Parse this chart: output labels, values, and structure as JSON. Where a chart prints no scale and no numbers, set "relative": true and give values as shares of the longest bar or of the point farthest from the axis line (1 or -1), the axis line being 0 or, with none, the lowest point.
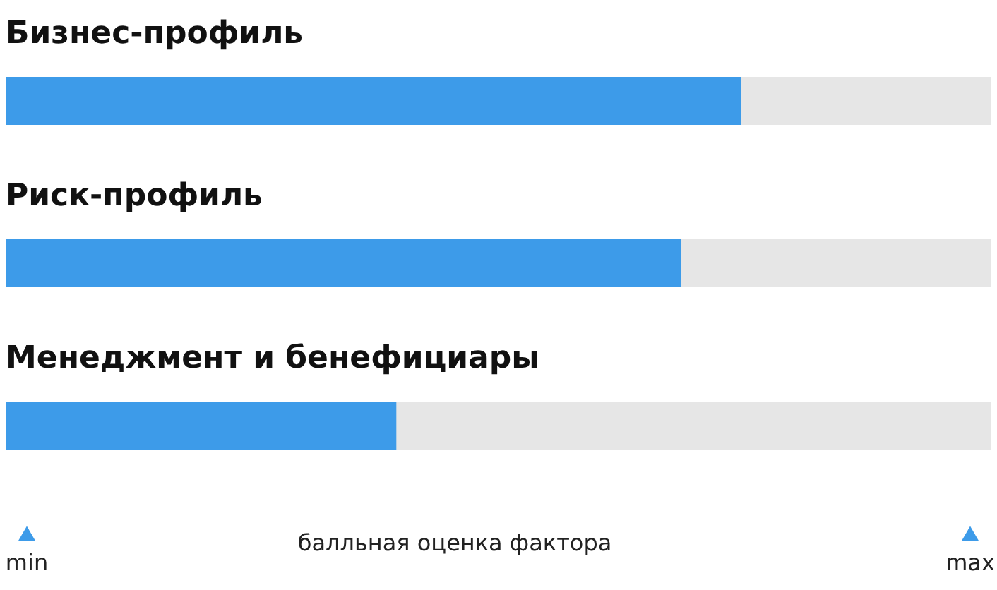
{
  "chart_data": {
    "type": "bar",
    "orientation": "horizontal",
    "relative": true,
    "categories": [
      "Бизнес-профиль",
      "Риск-профиль",
      "Менеджмент и бенефициары"
    ],
    "values": [
      1,
      0.918,
      0.531
    ],
    "color": "#3d9be9",
    "xlabel": "балльная оценка фактора",
    "annotations": [
      "min",
      "max"
    ]
  }
}
